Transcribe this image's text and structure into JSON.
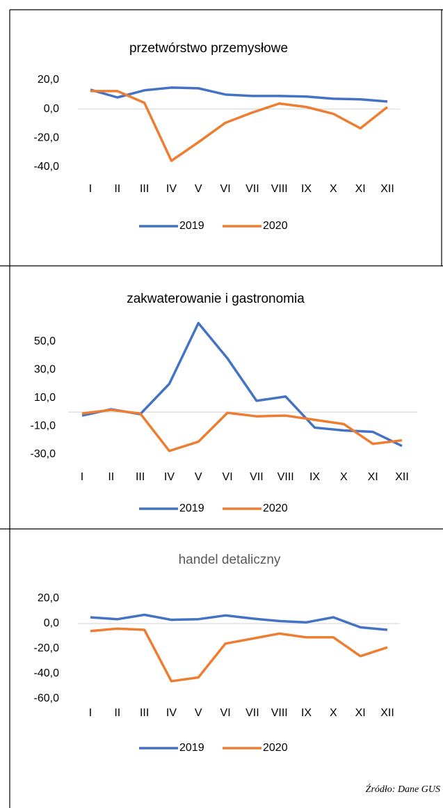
{
  "chart_data": [
    {
      "type": "line",
      "title": "przetwórstwo przemysłowe",
      "categories": [
        "I",
        "II",
        "III",
        "IV",
        "V",
        "VI",
        "VII",
        "VIII",
        "IX",
        "X",
        "XI",
        "XII"
      ],
      "series": [
        {
          "name": "2019",
          "color": "#4472c4",
          "values": [
            13.3,
            8,
            12.9,
            14.8,
            14.3,
            10,
            9,
            9,
            8.6,
            7.1,
            6.7,
            5.2
          ]
        },
        {
          "name": "2020",
          "color": "#ed7d31",
          "values": [
            12.4,
            12.4,
            4.3,
            -35.7,
            -22.9,
            -9.5,
            -2.4,
            3.8,
            1.4,
            -3.3,
            -13.3,
            1.4
          ]
        }
      ],
      "ylim": [
        -40,
        20
      ],
      "yticks": [
        {
          "value": 20,
          "label": "20,0"
        },
        {
          "value": 0,
          "label": "0,0"
        },
        {
          "value": -20,
          "label": "-20,0"
        },
        {
          "value": -40,
          "label": "-40,0"
        }
      ],
      "legend": "bottom"
    },
    {
      "type": "line",
      "title": "zakwaterowanie i gastronomia",
      "categories": [
        "I",
        "II",
        "III",
        "IV",
        "V",
        "VI",
        "VII",
        "VIII",
        "IX",
        "X",
        "XI",
        "XII"
      ],
      "series": [
        {
          "name": "2019",
          "color": "#4472c4",
          "values": [
            -2.5,
            2,
            -1.5,
            20,
            63,
            38,
            8,
            11,
            -11,
            -13,
            -14,
            -24
          ]
        },
        {
          "name": "2020",
          "color": "#ed7d31",
          "values": [
            -1,
            1.5,
            -1,
            -27.5,
            -21,
            -0.5,
            -3,
            -2.5,
            -5.5,
            -8.5,
            -22.5,
            -20
          ]
        }
      ],
      "ylim": [
        -30,
        70
      ],
      "yticks": [
        {
          "value": 50,
          "label": "50,0"
        },
        {
          "value": 30,
          "label": "30,0"
        },
        {
          "value": 10,
          "label": "10,0"
        },
        {
          "value": -10,
          "label": "-10,0"
        },
        {
          "value": -30,
          "label": "-30,0"
        }
      ],
      "legend": "bottom"
    },
    {
      "type": "line",
      "title": "handel detaliczny",
      "categories": [
        "I",
        "II",
        "III",
        "IV",
        "V",
        "VI",
        "VII",
        "VIII",
        "IX",
        "X",
        "XI",
        "XII"
      ],
      "series": [
        {
          "name": "2019",
          "color": "#4472c4",
          "values": [
            5,
            3.5,
            7,
            3,
            3.5,
            6.5,
            4,
            2,
            1,
            5,
            -3,
            -5
          ]
        },
        {
          "name": "2020",
          "color": "#ed7d31",
          "values": [
            -6,
            -4,
            -5,
            -46,
            -43,
            -16,
            -12,
            -8,
            -11,
            -11,
            -26,
            -19
          ]
        }
      ],
      "ylim": [
        -60,
        20
      ],
      "yticks": [
        {
          "value": 20,
          "label": "20,0"
        },
        {
          "value": 0,
          "label": "0,0"
        },
        {
          "value": -20,
          "label": "-20,0"
        },
        {
          "value": -40,
          "label": "-40,0"
        },
        {
          "value": -60,
          "label": "-60,0"
        }
      ],
      "legend": "bottom"
    }
  ],
  "source": "Źródło: Dane GUS"
}
